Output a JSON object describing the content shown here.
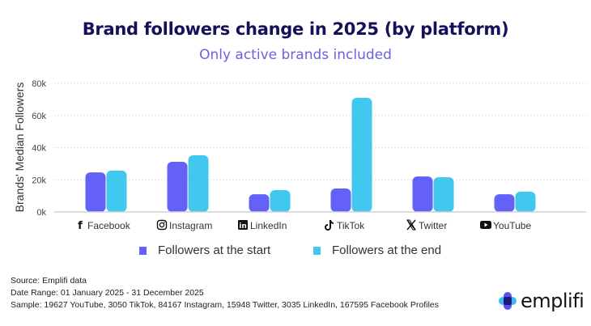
{
  "chart_data": {
    "type": "bar",
    "title": "Brand followers change in 2025 (by platform)",
    "subtitle": "Only active brands included",
    "xlabel": "",
    "ylabel": "Brands' Median Followers",
    "ylim": [
      0,
      80000
    ],
    "yticks": [
      0,
      20000,
      40000,
      60000,
      80000
    ],
    "ytick_labels": [
      "0k",
      "20k",
      "40k",
      "60k",
      "80k"
    ],
    "grid": true,
    "categories": [
      "Facebook",
      "Instagram",
      "LinkedIn",
      "TikTok",
      "Twitter",
      "YouTube"
    ],
    "category_icons": [
      "facebook-icon",
      "instagram-icon",
      "linkedin-icon",
      "tiktok-icon",
      "x-twitter-icon",
      "youtube-icon"
    ],
    "series": [
      {
        "name": "Followers at the start",
        "color": "#6461f7",
        "values": [
          24600,
          31200,
          11000,
          14600,
          22100,
          11000
        ]
      },
      {
        "name": "Followers at the end",
        "color": "#41c8ee",
        "values": [
          25700,
          35200,
          13600,
          71000,
          21600,
          12600
        ]
      }
    ],
    "legend": "bottom"
  },
  "footer": {
    "source": "Source:  Emplifi data",
    "date_range": "Date Range:  01 January 2025 - 31 December 2025",
    "sample": "Sample:  19627 YouTube, 3050 TikTok, 84167 Instagram, 15948 Twitter, 3035 LinkedIn, 167595 Facebook Profiles"
  },
  "logo": {
    "text": "emplifi"
  },
  "colors": {
    "title": "#14105a",
    "subtitle": "#6a61e0",
    "start": "#6461f7",
    "end": "#41c8ee"
  }
}
